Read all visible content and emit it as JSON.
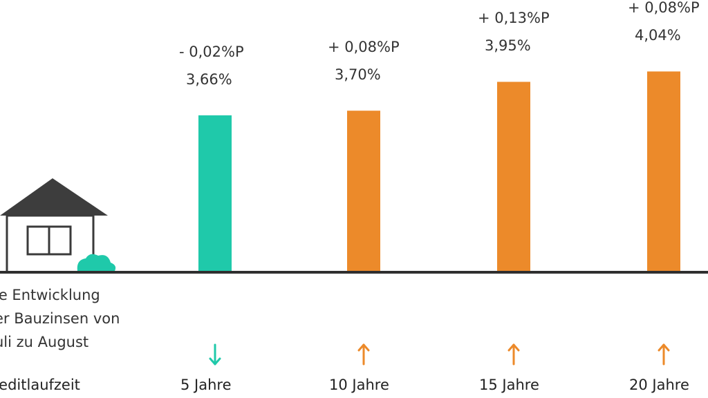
{
  "caption_lines": [
    "ie Entwicklung",
    "er Bauzinsen von",
    "uli zu August"
  ],
  "axis_title": "reditlaufzeit",
  "colors": {
    "decrease": "#1fc9aa",
    "increase": "#ec8a2a",
    "baseline": "#2f2f2f",
    "house": "#3a3a3a",
    "roof": "#3d3d3d",
    "bush": "#1fc9aa"
  },
  "icons": {
    "house": "house-icon",
    "bush": "bush-icon",
    "down": "arrow-down-icon",
    "up": "arrow-up-icon"
  },
  "chart_data": {
    "type": "bar",
    "categories": [
      "5 Jahre",
      "10 Jahre",
      "15 Jahre",
      "20 Jahre"
    ],
    "values": [
      3.66,
      3.7,
      3.95,
      4.04
    ],
    "value_labels": [
      "3,66%",
      "3,70%",
      "3,95%",
      "4,04%"
    ],
    "change_labels": [
      "- 0,02%P",
      "+ 0,08%P",
      "+ 0,13%P",
      "+ 0,08%P"
    ],
    "change_direction": [
      "down",
      "up",
      "up",
      "up"
    ],
    "ylim": [
      2.3,
      4.3
    ],
    "grid": false,
    "legend": "none"
  }
}
